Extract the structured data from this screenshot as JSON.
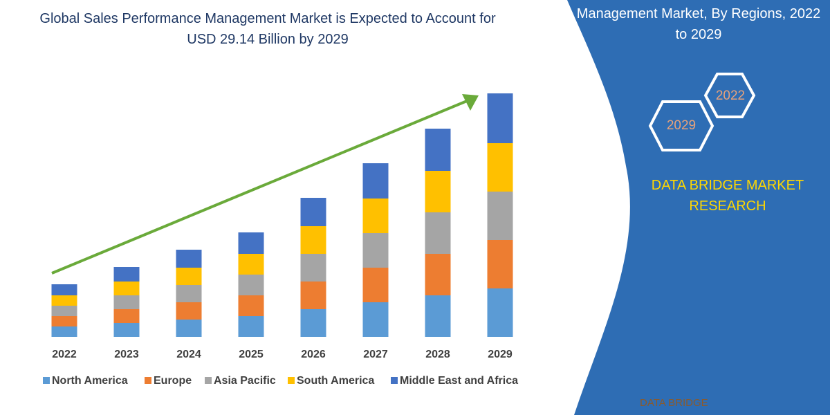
{
  "chart_data": {
    "type": "bar",
    "stacked": true,
    "title": "Global Sales Performance Management Market is Expected to Account for USD 29.14 Billion by 2029",
    "categories": [
      "2022",
      "2023",
      "2024",
      "2025",
      "2026",
      "2027",
      "2028",
      "2029"
    ],
    "series": [
      {
        "name": "North America",
        "color": "#5b9bd5",
        "values": [
          15,
          20,
          25,
          30,
          40,
          50,
          60,
          70
        ]
      },
      {
        "name": "Europe",
        "color": "#ed7d31",
        "values": [
          15,
          20,
          25,
          30,
          40,
          50,
          60,
          70
        ]
      },
      {
        "name": "Asia Pacific",
        "color": "#a5a5a5",
        "values": [
          15,
          20,
          25,
          30,
          40,
          50,
          60,
          70
        ]
      },
      {
        "name": "South America",
        "color": "#ffc000",
        "values": [
          15,
          20,
          25,
          30,
          40,
          50,
          60,
          70
        ]
      },
      {
        "name": "Middle East and Africa",
        "color": "#4472c4",
        "values": [
          16,
          21,
          26,
          31,
          41,
          51,
          61,
          72
        ]
      }
    ]
  },
  "panel": {
    "heading": "Management Market, By Regions, 2022 to 2029",
    "hex_labels": [
      "2022",
      "2029"
    ],
    "brand": "DATA BRIDGE MARKET RESEARCH",
    "logo": "DATA BRIDGE"
  }
}
